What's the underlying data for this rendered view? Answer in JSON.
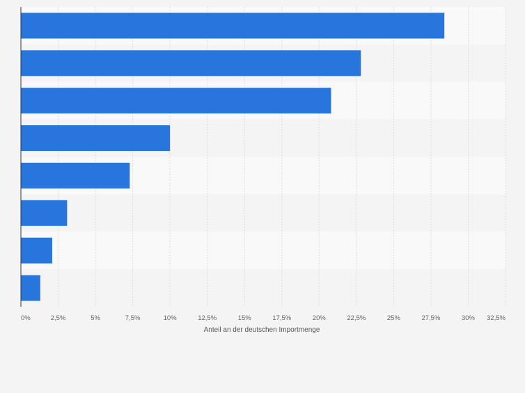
{
  "chart_data": {
    "type": "bar",
    "orientation": "horizontal",
    "categories": [
      "",
      "",
      "",
      "",
      "",
      "",
      "",
      ""
    ],
    "values": [
      28.4,
      22.8,
      20.8,
      10.0,
      7.3,
      3.1,
      2.1,
      1.3
    ],
    "xlabel": "Anteil an der deutschen Importmenge",
    "ylabel": "",
    "xlim": [
      0,
      32.5
    ],
    "tick_values": [
      0,
      2.5,
      5,
      7.5,
      10,
      12.5,
      15,
      17.5,
      20,
      22.5,
      25,
      27.5,
      30,
      32.5
    ],
    "tick_labels": [
      "0%",
      "2,5%",
      "5%",
      "7,5%",
      "10%",
      "12,5%",
      "15%",
      "17,5%",
      "20%",
      "22,5%",
      "25%",
      "27,5%",
      "30%",
      "32,5%"
    ],
    "grid": true,
    "legend": "none",
    "colors": {
      "bar": "#2876dd",
      "band_light": "#f9f9f9",
      "band_dark": "#f4f4f4",
      "grid": "#dcdcdc",
      "axis": "#333333",
      "tick_text": "#666666",
      "label_text": "#555555"
    }
  }
}
